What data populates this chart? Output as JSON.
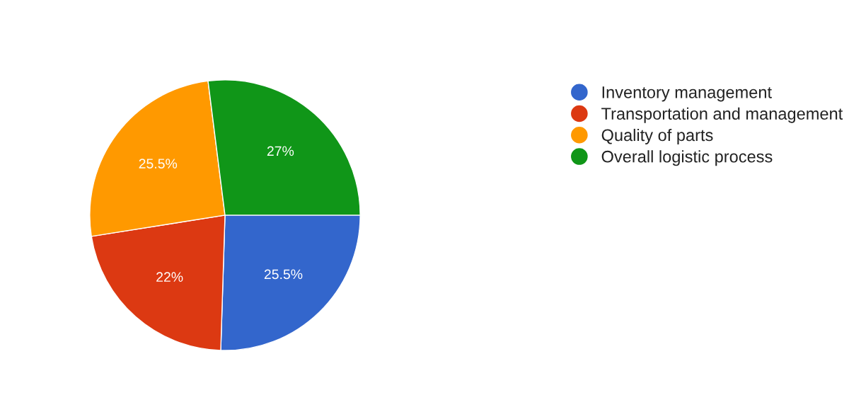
{
  "chart_data": {
    "type": "pie",
    "categories": [
      "Inventory management",
      "Transportation and management",
      "Quality of parts",
      "Overall logistic process"
    ],
    "values": [
      25.5,
      22,
      25.5,
      27
    ],
    "colors": [
      "#3366cc",
      "#dc3912",
      "#ff9900",
      "#109618"
    ],
    "value_labels": [
      "25.5%",
      "22%",
      "25.5%",
      "27%"
    ],
    "legend": "top right"
  }
}
